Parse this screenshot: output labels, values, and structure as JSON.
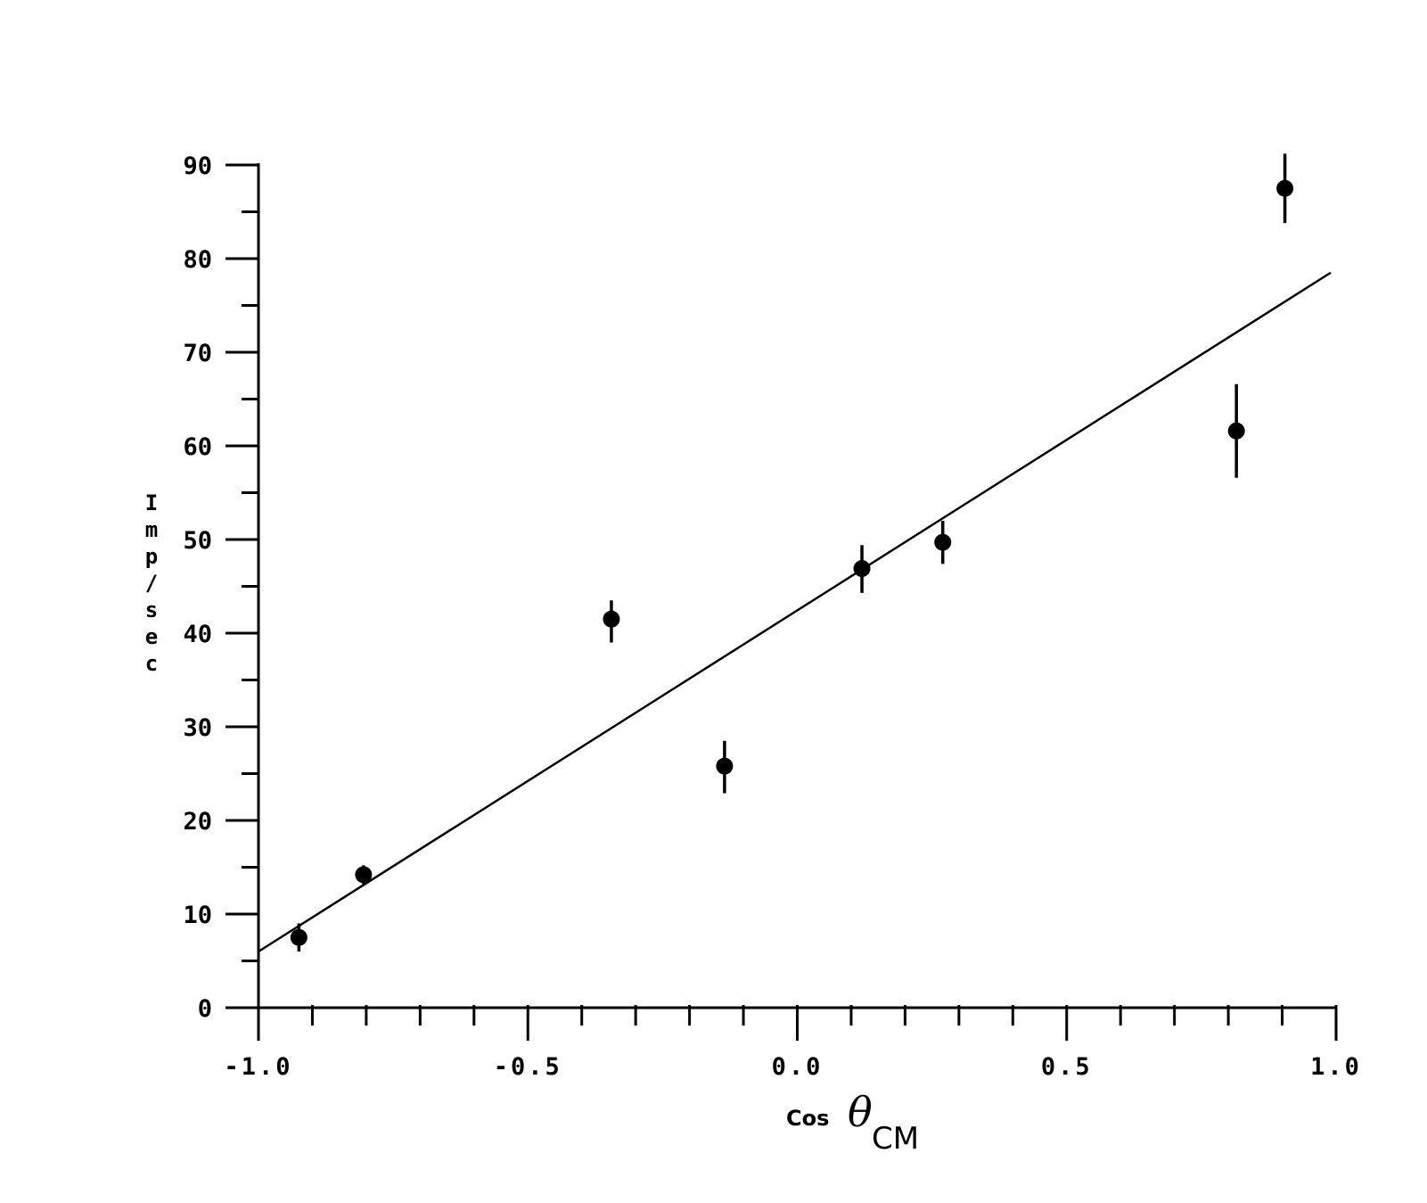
{
  "chart_data": {
    "type": "scatter",
    "xlabel": {
      "prefix": "Cos",
      "symbol": "θ",
      "subscript": "CM"
    },
    "ylabel": "Imp/sec",
    "xlim": [
      -1.0,
      1.0
    ],
    "ylim": [
      0,
      90
    ],
    "x_ticks": [
      "-1.0",
      "-0.5",
      "0.0",
      "0.5",
      "1.0"
    ],
    "y_ticks": [
      "0",
      "10",
      "20",
      "30",
      "40",
      "50",
      "60",
      "70",
      "80",
      "90"
    ],
    "grid": false,
    "points": [
      {
        "x": -0.925,
        "y": 7.5,
        "y_low": 6.0,
        "y_high": 9.0
      },
      {
        "x": -0.805,
        "y": 14.2,
        "y_low": 13.2,
        "y_high": 15.2
      },
      {
        "x": -0.345,
        "y": 41.5,
        "y_low": 39.0,
        "y_high": 43.5
      },
      {
        "x": -0.135,
        "y": 25.8,
        "y_low": 22.9,
        "y_high": 28.5
      },
      {
        "x": 0.12,
        "y": 46.9,
        "y_low": 44.3,
        "y_high": 49.4
      },
      {
        "x": 0.27,
        "y": 49.7,
        "y_low": 47.4,
        "y_high": 52.0
      },
      {
        "x": 0.815,
        "y": 61.6,
        "y_low": 56.6,
        "y_high": 66.6
      },
      {
        "x": 0.905,
        "y": 87.5,
        "y_low": 83.8,
        "y_high": 91.2
      }
    ],
    "fit_line": {
      "x": [
        -1.0,
        0.99
      ],
      "y": [
        6.0,
        78.5
      ]
    }
  }
}
